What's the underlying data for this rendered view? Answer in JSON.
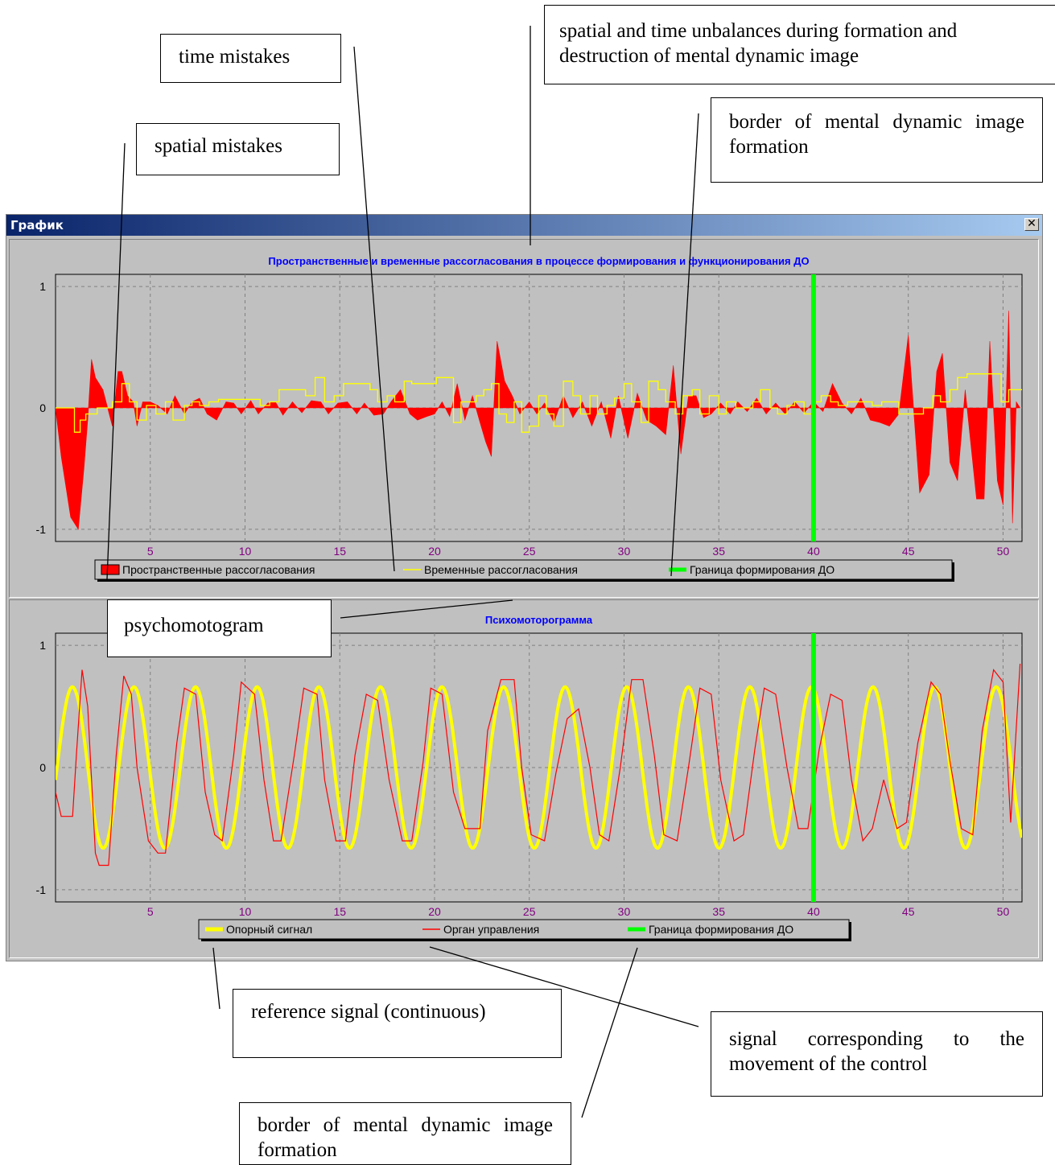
{
  "window": {
    "title": "График",
    "close_glyph": "✕"
  },
  "annotations": {
    "time_mistakes": "time mistakes",
    "spatial_time_unbalances": "spatial and time unbalances during formation and destruction of mental dynamic image",
    "spatial_mistakes": "spatial mistakes",
    "border_top": "border of mental dynamic image formation",
    "psychomotogram": "psychomotogram",
    "reference_signal": "reference signal (continuous)",
    "control_signal": "signal corresponding to the movement of the control",
    "border_bottom": "border of mental dynamic image formation"
  },
  "chart_data": [
    {
      "type": "line",
      "title": "Пространственные и временные рассогласования в процессе формирования и функционирования ДО",
      "xlim": [
        0,
        51
      ],
      "ylim": [
        -1.1,
        1.1
      ],
      "x_ticks": [
        5,
        10,
        15,
        20,
        25,
        30,
        35,
        40,
        45,
        50
      ],
      "y_ticks": [
        1,
        0,
        -1
      ],
      "grid": true,
      "legend_position": "bottom",
      "marker_x": 40,
      "legend": [
        {
          "label": "Пространственные рассогласования",
          "color": "#ff0000",
          "kind": "box"
        },
        {
          "label": "Временные рассогласования",
          "color": "#ffff00",
          "kind": "line"
        },
        {
          "label": "Граница формирования ДО",
          "color": "#00ff00",
          "kind": "thick"
        }
      ],
      "series": [
        {
          "legend": "Пространственные рассогласования",
          "kind": "fill",
          "color": "#ff0000",
          "x": [
            0,
            0.3,
            0.8,
            1.2,
            1.5,
            1.7,
            1.9,
            2.1,
            2.5,
            3.0,
            3.3,
            3.5,
            3.8,
            4.1,
            4.3,
            4.6,
            5.0,
            5.4,
            5.9,
            6.3,
            6.8,
            7.2,
            7.6,
            8.0,
            8.5,
            9.0,
            9.4,
            9.8,
            10.3,
            10.7,
            11.2,
            11.6,
            12.0,
            12.5,
            13.0,
            13.5,
            14.0,
            14.4,
            14.9,
            15.4,
            15.9,
            16.3,
            16.8,
            17.3,
            17.7,
            18.2,
            18.7,
            19.1,
            19.6,
            20.0,
            20.4,
            20.8,
            21.2,
            21.6,
            22.0,
            22.4,
            22.7,
            23.0,
            23.3,
            23.7,
            24.1,
            24.5,
            25.0,
            25.4,
            25.8,
            26.3,
            26.8,
            27.3,
            27.8,
            28.3,
            28.8,
            29.3,
            29.7,
            30.2,
            30.7,
            31.2,
            31.7,
            32.2,
            32.6,
            33.0,
            33.4,
            33.8,
            34.2,
            34.6,
            35.1,
            35.6,
            36.0,
            36.5,
            37.0,
            37.5,
            38.0,
            38.5,
            39.0,
            39.5,
            40.0,
            40.5,
            41.0,
            41.5,
            42.0,
            42.5,
            43.0,
            43.5,
            44.0,
            44.5,
            45.0,
            45.6,
            46.1,
            46.5,
            46.8,
            47.2,
            47.6,
            48.0,
            48.6,
            49.0,
            49.3,
            49.7,
            50.0,
            50.3,
            50.5,
            50.7,
            50.9
          ],
          "values": [
            0,
            -0.4,
            -0.9,
            -1.0,
            -0.5,
            -0.1,
            0.4,
            0.25,
            0.15,
            -0.15,
            0.3,
            0.3,
            0.1,
            0.05,
            -0.15,
            0.05,
            0.05,
            0.02,
            -0.05,
            0.1,
            -0.05,
            0.05,
            0.08,
            -0.05,
            -0.1,
            0.05,
            0.04,
            -0.05,
            0.06,
            -0.05,
            0.04,
            0.05,
            -0.06,
            0.05,
            -0.04,
            0.06,
            0.05,
            -0.05,
            0.04,
            0.05,
            -0.05,
            0.04,
            -0.06,
            -0.05,
            0.05,
            0.15,
            -0.05,
            -0.1,
            -0.07,
            -0.05,
            0.05,
            -0.07,
            0.2,
            -0.1,
            0.1,
            -0.12,
            -0.28,
            -0.4,
            0.55,
            0.22,
            0.1,
            -0.05,
            0.05,
            -0.05,
            0.04,
            -0.12,
            0.1,
            -0.08,
            0.05,
            -0.15,
            0.05,
            -0.25,
            0.1,
            -0.25,
            0.12,
            -0.1,
            -0.15,
            -0.22,
            0.35,
            -0.38,
            0.1,
            0.1,
            -0.08,
            -0.05,
            0.04,
            -0.05,
            0.05,
            -0.03,
            0.08,
            -0.05,
            0.04,
            -0.05,
            0.05,
            -0.04,
            0.05,
            -0.03,
            0.2,
            0.04,
            -0.05,
            0.08,
            -0.1,
            -0.12,
            -0.15,
            -0.05,
            0.6,
            -0.7,
            -0.55,
            0.3,
            0.45,
            -0.45,
            -0.6,
            0.15,
            -0.75,
            -0.75,
            0.55,
            -0.6,
            -0.8,
            0.8,
            -0.95,
            0.05,
            0
          ]
        },
        {
          "legend": "Временные рассогласования",
          "kind": "step",
          "color": "#ffff00",
          "x": [
            0,
            1.0,
            1.3,
            1.6,
            2.2,
            2.6,
            3.0,
            3.5,
            3.9,
            4.3,
            4.8,
            5.3,
            5.8,
            6.2,
            6.8,
            7.2,
            7.6,
            8.1,
            8.6,
            9.0,
            9.4,
            10.0,
            10.4,
            10.8,
            11.3,
            11.8,
            12.2,
            12.7,
            13.2,
            13.7,
            14.2,
            14.7,
            15.2,
            15.7,
            16.2,
            16.6,
            17.0,
            17.5,
            17.9,
            18.4,
            18.8,
            19.2,
            19.7,
            20.1,
            20.5,
            21.0,
            21.4,
            21.8,
            22.2,
            22.6,
            23.0,
            23.4,
            23.8,
            24.2,
            24.6,
            25.0,
            25.5,
            25.9,
            26.3,
            26.8,
            27.3,
            27.7,
            28.2,
            28.6,
            29.1,
            29.5,
            30.0,
            30.4,
            30.9,
            31.3,
            31.8,
            32.2,
            32.7,
            33.1,
            33.6,
            34.0,
            34.5,
            35.0,
            35.4,
            35.9,
            36.3,
            36.8,
            37.2,
            37.7,
            38.1,
            38.6,
            39.0,
            39.5,
            40.0,
            40.4,
            40.9,
            41.3,
            41.8,
            42.2,
            42.7,
            43.1,
            43.6,
            44.0,
            44.5,
            44.9,
            45.4,
            45.8,
            46.3,
            46.7,
            47.2,
            47.6,
            48.1,
            48.5,
            49.0,
            49.4,
            49.9,
            50.3,
            50.7
          ],
          "values": [
            0,
            -0.2,
            -0.1,
            -0.05,
            0,
            0,
            0.05,
            0.2,
            0.05,
            -0.1,
            0.02,
            -0.05,
            0.05,
            -0.1,
            0.02,
            0.05,
            0.02,
            0.05,
            0.07,
            0.07,
            0.07,
            0.07,
            0.07,
            0.02,
            0.05,
            0.15,
            0.15,
            0.15,
            0.1,
            0.25,
            0.05,
            0.1,
            0.2,
            0.2,
            0.2,
            0.15,
            0.05,
            0.1,
            0.05,
            0.22,
            0.2,
            0.2,
            0.2,
            0.25,
            0.25,
            -0.12,
            0.05,
            0.05,
            0.1,
            0.15,
            0.2,
            -0.05,
            -0.12,
            0.05,
            -0.2,
            -0.15,
            0.1,
            -0.05,
            -0.15,
            0.22,
            0.1,
            -0.05,
            0.1,
            -0.05,
            0.02,
            0.08,
            0.2,
            0.05,
            -0.12,
            0.22,
            0.15,
            0.05,
            -0.05,
            0.1,
            0.15,
            -0.05,
            0.1,
            -0.05,
            0.05,
            0,
            0,
            0.05,
            0.15,
            0,
            -0.05,
            0.02,
            0.05,
            -0.05,
            0.05,
            0.1,
            0.05,
            0.02,
            0.05,
            0.05,
            0.05,
            0.02,
            0.05,
            0.05,
            -0.05,
            -0.05,
            -0.05,
            0,
            0.1,
            0.05,
            0.15,
            0.25,
            0.28,
            0.28,
            0.28,
            0.28,
            0.05,
            0.15,
            0.15
          ]
        }
      ]
    },
    {
      "type": "line",
      "title": "Психомоторограмма",
      "xlim": [
        0,
        51
      ],
      "ylim": [
        -1.1,
        1.1
      ],
      "x_ticks": [
        5,
        10,
        15,
        20,
        25,
        30,
        35,
        40,
        45,
        50
      ],
      "y_ticks": [
        1,
        0,
        -1
      ],
      "grid": true,
      "legend_position": "bottom",
      "marker_x": 40,
      "legend": [
        {
          "label": "Опорный сигнал",
          "color": "#ffff00",
          "kind": "thick"
        },
        {
          "label": "Орган управления",
          "color": "#ff0000",
          "kind": "line"
        },
        {
          "label": "Граница формирования ДО",
          "color": "#00ff00",
          "kind": "thick"
        }
      ],
      "series": [
        {
          "legend": "Опорный сигнал",
          "kind": "line",
          "color": "#ffff00",
          "function": "0.66*sin(2*pi*(x-0.08)/3.25)",
          "x_step": 0.05
        },
        {
          "legend": "Орган управления",
          "kind": "line",
          "color": "#ff0000",
          "x": [
            0,
            0.3,
            0.9,
            1.1,
            1.4,
            1.7,
            2.1,
            2.3,
            2.8,
            3.2,
            3.6,
            4.0,
            4.3,
            4.9,
            5.4,
            5.8,
            6.4,
            6.8,
            7.4,
            7.9,
            8.4,
            8.8,
            9.4,
            9.8,
            10.5,
            11.0,
            11.5,
            11.9,
            12.6,
            13.1,
            13.8,
            14.2,
            14.8,
            15.3,
            15.8,
            16.4,
            17.0,
            17.6,
            18.3,
            18.8,
            19.4,
            19.8,
            20.4,
            21.0,
            21.6,
            22.4,
            22.8,
            23.5,
            24.2,
            24.6,
            25.1,
            25.8,
            26.4,
            27.0,
            27.6,
            28.2,
            28.7,
            29.2,
            29.8,
            30.4,
            31.0,
            31.6,
            32.1,
            32.8,
            33.4,
            34.0,
            34.6,
            35.1,
            35.8,
            36.3,
            36.9,
            37.4,
            38.0,
            38.6,
            39.2,
            39.7,
            40.3,
            40.9,
            41.5,
            42.0,
            42.6,
            43.1,
            43.7,
            44.4,
            44.9,
            45.5,
            46.2,
            46.7,
            47.2,
            47.8,
            48.4,
            48.9,
            49.5,
            50.0,
            50.4,
            50.9
          ],
          "values": [
            -0.2,
            -0.4,
            -0.4,
            0.1,
            0.8,
            0.5,
            -0.7,
            -0.8,
            -0.8,
            0.1,
            0.75,
            0.6,
            0,
            -0.6,
            -0.7,
            -0.7,
            0.2,
            0.65,
            0.6,
            -0.2,
            -0.55,
            -0.6,
            0.1,
            0.7,
            0.6,
            -0.1,
            -0.6,
            -0.6,
            0.1,
            0.65,
            0.6,
            -0.1,
            -0.6,
            -0.6,
            0.1,
            0.6,
            0.55,
            -0.1,
            -0.6,
            -0.6,
            0.05,
            0.65,
            0.6,
            -0.2,
            -0.5,
            -0.5,
            0.3,
            0.72,
            0.72,
            0,
            -0.55,
            -0.6,
            -0.05,
            0.4,
            0.48,
            0,
            -0.55,
            -0.6,
            0,
            0.72,
            0.72,
            0.1,
            -0.55,
            -0.6,
            0,
            0.65,
            0.6,
            -0.1,
            -0.6,
            -0.55,
            0.15,
            0.65,
            0.6,
            0,
            -0.5,
            -0.5,
            0.15,
            0.6,
            0.55,
            -0.1,
            -0.6,
            -0.5,
            -0.1,
            -0.5,
            -0.45,
            0.2,
            0.7,
            0.6,
            0.05,
            -0.5,
            -0.55,
            0.3,
            0.8,
            0.7,
            -0.45,
            0.85
          ]
        }
      ]
    }
  ]
}
